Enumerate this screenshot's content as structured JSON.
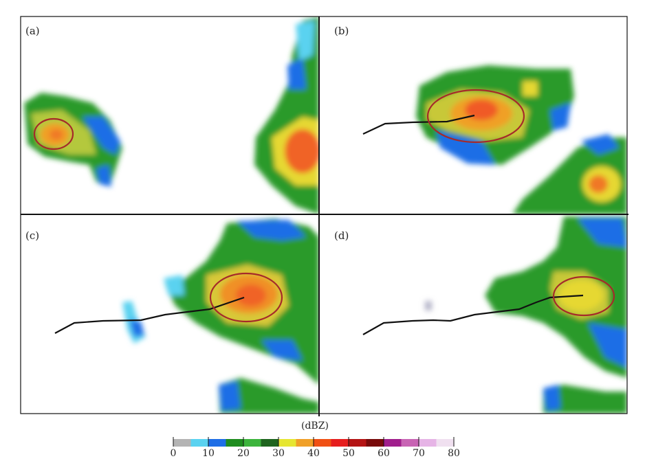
{
  "panels": [
    {
      "label": "(a)"
    },
    {
      "label": "(b)"
    },
    {
      "label": "(c)"
    },
    {
      "label": "(d)"
    }
  ],
  "colorbar": {
    "unit": "(dBZ)",
    "ticks": [
      "0",
      "10",
      "20",
      "30",
      "40",
      "50",
      "60",
      "70",
      "80"
    ],
    "colors": [
      "#b4b4b4",
      "#5ad2f0",
      "#1e6ee6",
      "#1e8c1e",
      "#3cb43c",
      "#1e641e",
      "#e6e632",
      "#f0a028",
      "#f05014",
      "#e61e1e",
      "#b41414",
      "#780a0a",
      "#a01e8c",
      "#c864b4",
      "#e6b4e6",
      "#f0e0f0"
    ]
  },
  "colors": {
    "ellipse": "#a52a2a",
    "track": "#111111",
    "frame": "#111111"
  }
}
